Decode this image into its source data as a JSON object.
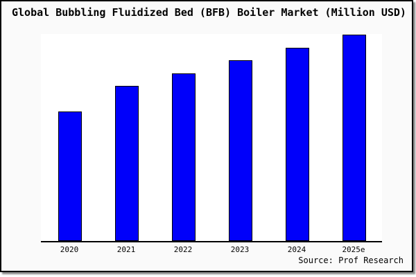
{
  "chart_data": {
    "type": "bar",
    "title": "Global Bubbling Fluidized Bed (BFB) Boiler Market (Million USD)",
    "categories": [
      "2020",
      "2021",
      "2022",
      "2023",
      "2024",
      "2025e"
    ],
    "values": [
      188,
      225,
      244,
      263,
      281,
      300
    ],
    "values_note": "y-axis has no tick labels; values are relative bar heights estimated from pixels",
    "ylim": [
      0,
      300
    ],
    "xlabel": "",
    "ylabel": "",
    "grid": false,
    "legend": "none",
    "source": "Source: Prof Research",
    "bar_color": "#0000fa",
    "bar_border_color": "#000000"
  },
  "colors": {
    "page_bg": "#ffffff",
    "figure_bg": "#fafafa",
    "plot_bg": "#ffffff",
    "frame_border": "#000000",
    "shadow": "#8a8a8a",
    "text": "#000000"
  }
}
